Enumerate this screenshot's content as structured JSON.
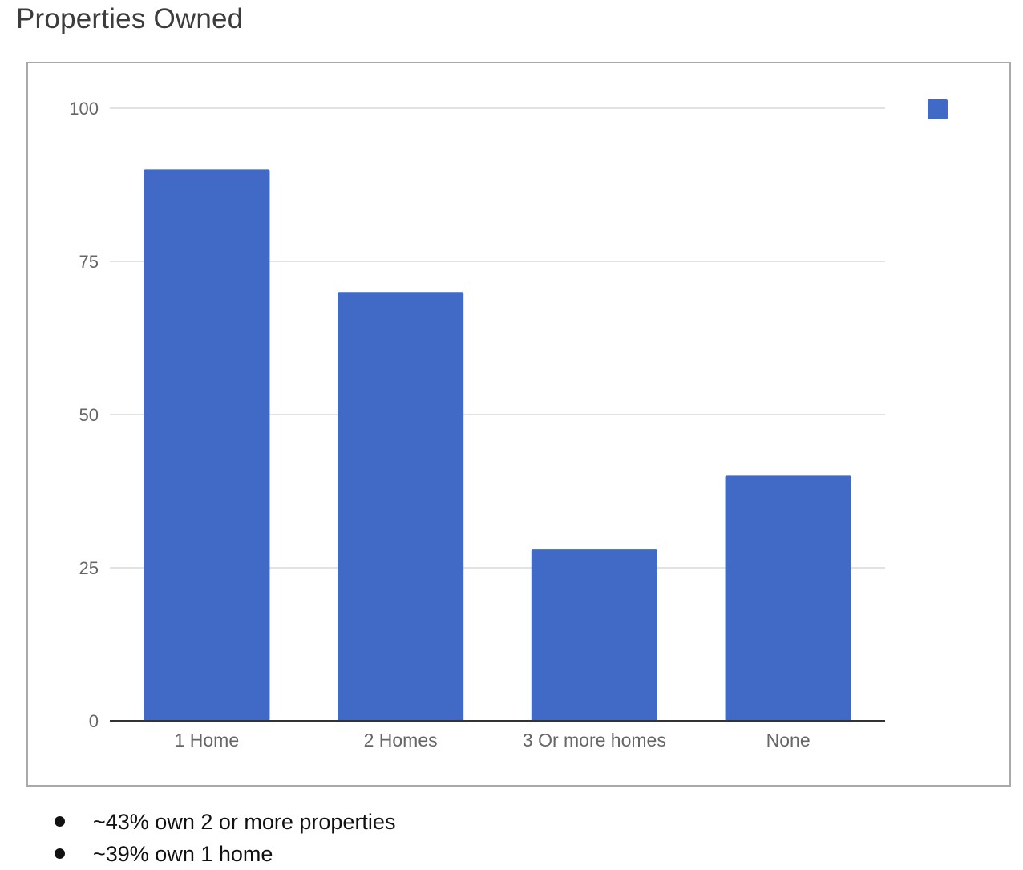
{
  "page": {
    "title": "Properties Owned"
  },
  "chart_data": {
    "type": "bar",
    "title": "",
    "categories": [
      "1 Home",
      "2 Homes",
      "3 Or more homes",
      "None"
    ],
    "values": [
      90,
      70,
      28,
      40
    ],
    "xlabel": "",
    "ylabel": "",
    "ylim": [
      0,
      100
    ],
    "yticks": [
      0,
      25,
      50,
      75,
      100
    ],
    "grid": true,
    "legend": {
      "position": "right",
      "entries": [
        ""
      ]
    },
    "colors": {
      "bar": "#4169c6",
      "grid": "#d9d9d9",
      "axis": "#333333",
      "tick_label": "#666666"
    }
  },
  "notes": [
    "~43% own 2 or more properties",
    "~39% own 1 home"
  ]
}
